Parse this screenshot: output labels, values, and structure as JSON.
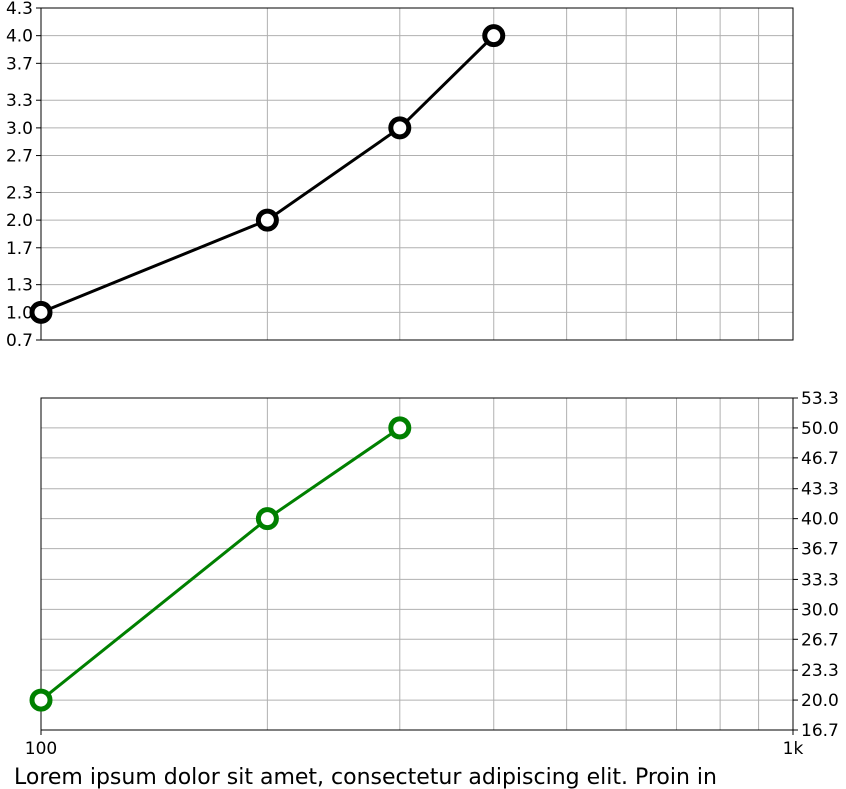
{
  "chart_data": [
    {
      "type": "line",
      "xscale": "log",
      "x": [
        100,
        200,
        300,
        400
      ],
      "xlim": [
        100,
        1000
      ],
      "ylim": [
        0.7,
        4.3
      ],
      "yticks": [
        "0.7",
        "1.0",
        "1.3",
        "1.7",
        "2.0",
        "2.3",
        "2.7",
        "3.0",
        "3.3",
        "3.7",
        "4.0",
        "4.3"
      ],
      "yaxis_side": "left",
      "grid": true,
      "series": [
        {
          "values": [
            1,
            2,
            3,
            4
          ],
          "color": "#000000"
        }
      ]
    },
    {
      "type": "line",
      "xscale": "log",
      "x": [
        100,
        200,
        300
      ],
      "xlim": [
        100,
        1000
      ],
      "ylim": [
        16.7,
        53.3
      ],
      "yticks": [
        "16.7",
        "20.0",
        "23.3",
        "26.7",
        "30.0",
        "33.3",
        "36.7",
        "40.0",
        "43.3",
        "46.7",
        "50.0",
        "53.3"
      ],
      "yaxis_side": "right",
      "xticks": [
        "100",
        "1k"
      ],
      "grid": true,
      "series": [
        {
          "values": [
            20,
            40,
            50
          ],
          "color": "#008000"
        }
      ]
    }
  ],
  "caption": "Lorem ipsum dolor sit amet, consectetur adipiscing elit. Proin in"
}
